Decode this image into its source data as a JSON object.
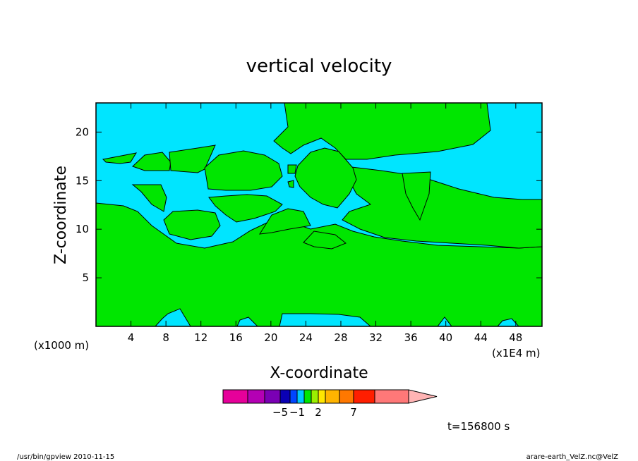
{
  "chart_data": {
    "type": "heatmap",
    "title": "vertical velocity",
    "xlabel": "X-coordinate",
    "ylabel": "Z-coordinate",
    "x_scale_label": "(x1000 m)",
    "x_unit_label": "(x1E4 m)",
    "xlim": [
      0,
      51
    ],
    "ylim": [
      0,
      23
    ],
    "xticks": [
      "4",
      "8",
      "12",
      "16",
      "20",
      "24",
      "28",
      "32",
      "36",
      "40",
      "44",
      "48"
    ],
    "yticks": [
      "5",
      "10",
      "15",
      "20"
    ],
    "fill_colors": {
      "background": "#00e5ff",
      "regions": "#00e600"
    },
    "colorbar": {
      "colors": [
        "#e6009a",
        "#b400b4",
        "#7a00b4",
        "#0a00b4",
        "#0046ff",
        "#00c8ff",
        "#00e600",
        "#9bef00",
        "#ffe600",
        "#ffb400",
        "#ff7800",
        "#ff1e00",
        "#ff7878",
        "#ffb4b4"
      ],
      "labels": [
        {
          "text": "−5",
          "value": -5
        },
        {
          "text": "−1",
          "value": -1
        },
        {
          "text": "2",
          "value": 2
        },
        {
          "text": "7",
          "value": 7
        }
      ]
    },
    "time_label": "t=156800 s"
  },
  "footer": {
    "left": "/usr/bin/gpview   2010-11-15",
    "right": "arare-earth_VelZ.nc@VelZ"
  }
}
